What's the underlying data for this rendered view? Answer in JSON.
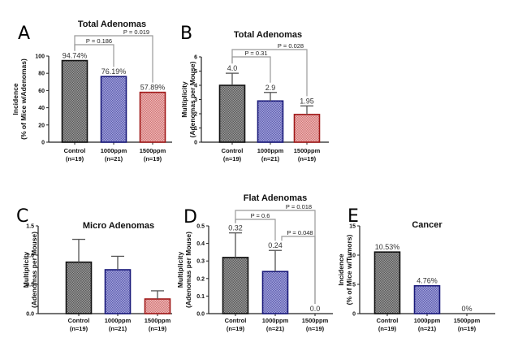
{
  "chart_data": [
    {
      "panel": "A",
      "type": "bar",
      "title": "Total Adenomas",
      "ylabel": [
        "Incidence",
        "(% of Mice w/Adenomas)"
      ],
      "categories": [
        "Control",
        "1000ppm",
        "1500ppm"
      ],
      "category_sub": [
        "(n=19)",
        "(n=21)",
        "(n=19)"
      ],
      "values": [
        94.74,
        76.19,
        57.89
      ],
      "errors": null,
      "data_labels": [
        "94.74%",
        "76.19%",
        "57.89%"
      ],
      "ylim": [
        0,
        100
      ],
      "yticks": [
        0,
        20,
        40,
        60,
        80,
        100
      ],
      "ytick_labels": [
        "0",
        "20",
        "40",
        "60",
        "80",
        "100"
      ],
      "comparisons": [
        {
          "from": 0,
          "to": 1,
          "label": "P = 0.186"
        },
        {
          "from": 0,
          "to": 2,
          "label": "P = 0.019"
        }
      ]
    },
    {
      "panel": "B",
      "type": "bar",
      "title": "Total Adenomas",
      "ylabel": [
        "Multiplicity",
        "(Adenomas per Mouse)"
      ],
      "categories": [
        "Control",
        "1000ppm",
        "1500ppm"
      ],
      "category_sub": [
        "(n=19)",
        "(n=21)",
        "(n=19)"
      ],
      "values": [
        4.0,
        2.9,
        1.95
      ],
      "errors": [
        0.85,
        0.6,
        0.6
      ],
      "data_labels": [
        "4.0",
        "2.9",
        "1.95"
      ],
      "ylim": [
        0,
        6
      ],
      "yticks": [
        0,
        1,
        2,
        3,
        4,
        5,
        6
      ],
      "ytick_labels": [
        "0",
        "1",
        "2",
        "3",
        "4",
        "5",
        "6"
      ],
      "comparisons": [
        {
          "from": 0,
          "to": 1,
          "label": "P = 0.31"
        },
        {
          "from": 0,
          "to": 2,
          "label": "P = 0.028"
        }
      ]
    },
    {
      "panel": "C",
      "type": "bar",
      "title": "Micro Adenomas",
      "ylabel": [
        "Multiplicity",
        "(Adenomas per Mouse)"
      ],
      "categories": [
        "Control",
        "1000ppm",
        "1500ppm"
      ],
      "category_sub": [
        "(n=19)",
        "(n=21)",
        "(n=19)"
      ],
      "values": [
        0.88,
        0.75,
        0.25
      ],
      "errors": [
        0.39,
        0.23,
        0.14
      ],
      "data_labels": null,
      "ylim": [
        0,
        1.5
      ],
      "yticks": [
        0,
        0.5,
        1.0,
        1.5
      ],
      "ytick_labels": [
        "0.0",
        "0.5",
        "1.0",
        "1.5"
      ],
      "comparisons": []
    },
    {
      "panel": "D",
      "type": "bar",
      "title": "Flat Adenomas",
      "ylabel": [
        "Multiplicity",
        "(Adenomas per Mouse)"
      ],
      "categories": [
        "Control",
        "1000ppm",
        "1500ppm"
      ],
      "category_sub": [
        "(n=19)",
        "(n=21)",
        "(n=19)"
      ],
      "values": [
        0.32,
        0.24,
        0.0
      ],
      "errors": [
        0.14,
        0.12,
        0
      ],
      "data_labels": [
        "0.32",
        "0.24",
        "0.0"
      ],
      "ylim": [
        0,
        0.5
      ],
      "yticks": [
        0,
        0.1,
        0.2,
        0.3,
        0.4,
        0.5
      ],
      "ytick_labels": [
        "0.0",
        "0.1",
        "0.2",
        "0.3",
        "0.4",
        "0.5"
      ],
      "comparisons": [
        {
          "from": 0,
          "to": 1,
          "label": "P = 0.6"
        },
        {
          "from": 0,
          "to": 2,
          "label": "P = 0.018"
        },
        {
          "from": 1,
          "to": 2,
          "label": "P = 0.048"
        }
      ]
    },
    {
      "panel": "E",
      "type": "bar",
      "title": "Cancer",
      "ylabel": [
        "Incidence",
        "(% of Mice w/Tumors)"
      ],
      "categories": [
        "Control",
        "1000ppm",
        "1500ppm"
      ],
      "category_sub": [
        "(n=19)",
        "(n=21)",
        "(n=19)"
      ],
      "values": [
        10.53,
        4.76,
        0
      ],
      "errors": null,
      "data_labels": [
        "10.53%",
        "4.76%",
        "0%"
      ],
      "ylim": [
        0,
        15
      ],
      "yticks": [
        0,
        5,
        10,
        15
      ],
      "ytick_labels": [
        "0",
        "5",
        "10",
        "15"
      ],
      "comparisons": []
    }
  ],
  "series_colors": {
    "Control": {
      "fill": "#8a8a8a",
      "stroke": "#111111"
    },
    "1000ppm": {
      "fill": "#8a8acc",
      "stroke": "#1a1a7a"
    },
    "1500ppm": {
      "fill": "#e39a9a",
      "stroke": "#a01818"
    }
  }
}
